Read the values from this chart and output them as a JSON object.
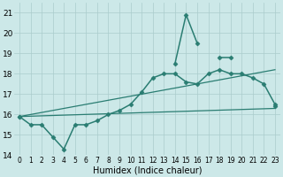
{
  "xlabel": "Humidex (Indice chaleur)",
  "bg_color": "#cce8e8",
  "grid_color": "#aacccc",
  "line_color": "#2a7d72",
  "xlim": [
    -0.5,
    23.5
  ],
  "ylim": [
    14,
    21.5
  ],
  "yticks": [
    14,
    15,
    16,
    17,
    18,
    19,
    20,
    21
  ],
  "xticks": [
    0,
    1,
    2,
    3,
    4,
    5,
    6,
    7,
    8,
    9,
    10,
    11,
    12,
    13,
    14,
    15,
    16,
    17,
    18,
    19,
    20,
    21,
    22,
    23
  ],
  "series": [
    {
      "x": [
        0,
        1,
        2,
        3,
        4,
        5,
        6,
        7,
        8,
        9,
        10,
        11,
        12,
        13,
        14,
        15,
        16,
        17,
        18,
        19,
        20,
        21,
        22,
        23
      ],
      "y": [
        15.9,
        15.5,
        15.5,
        14.9,
        14.3,
        15.5,
        15.5,
        15.7,
        16.0,
        16.2,
        16.5,
        17.1,
        17.8,
        18.0,
        18.0,
        17.6,
        17.5,
        18.0,
        18.2,
        18.0,
        18.0,
        17.8,
        17.5,
        16.5
      ],
      "marker": "D",
      "markersize": 2.5,
      "linewidth": 1.1,
      "has_gaps": false
    },
    {
      "x": [
        0,
        1,
        2,
        3,
        4,
        5,
        6,
        7,
        8,
        9,
        10,
        11,
        12,
        13,
        14,
        15,
        16,
        17,
        18,
        19,
        20,
        21,
        22,
        23
      ],
      "y": [
        15.9,
        null,
        null,
        null,
        null,
        null,
        null,
        null,
        null,
        null,
        null,
        null,
        null,
        null,
        18.5,
        20.9,
        19.5,
        null,
        18.8,
        18.8,
        null,
        null,
        null,
        16.4
      ],
      "marker": "D",
      "markersize": 2.5,
      "linewidth": 1.1,
      "has_gaps": true
    },
    {
      "x": [
        0,
        23
      ],
      "y": [
        15.9,
        16.3
      ],
      "marker": null,
      "markersize": 0,
      "linewidth": 0.9,
      "has_gaps": false
    },
    {
      "x": [
        0,
        23
      ],
      "y": [
        15.9,
        18.2
      ],
      "marker": null,
      "markersize": 0,
      "linewidth": 0.9,
      "has_gaps": false
    }
  ]
}
